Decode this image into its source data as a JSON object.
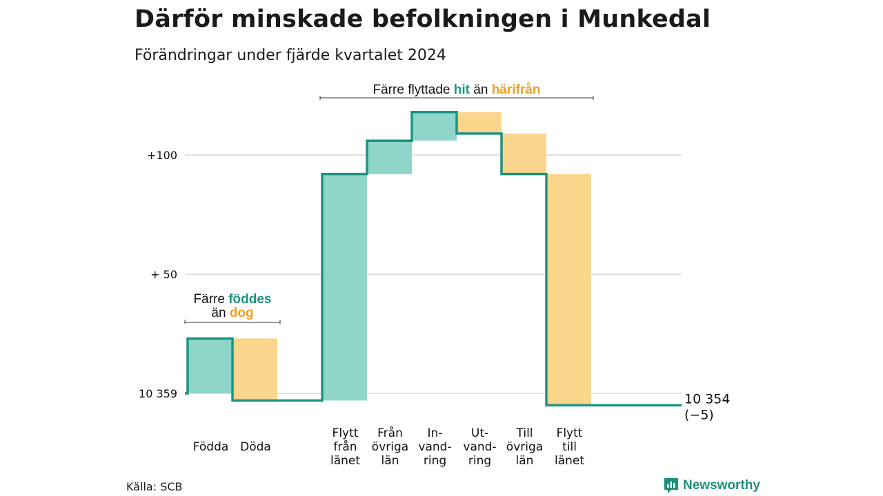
{
  "title": "Därför minskade befolkningen i Munkedal",
  "subtitle": "Förändringar under fjärde kvartalet 2024",
  "source": "Källa: SCB",
  "brand": {
    "name": "Newsworthy",
    "icon": "chart-bubble-icon",
    "color": "#1f8f7c"
  },
  "colors": {
    "increase": "#8fd5ca",
    "decrease": "#fad58c",
    "line": "#1a9582",
    "grid": "#d9d9d9"
  },
  "chart_data": {
    "type": "waterfall",
    "start": {
      "value": 10359,
      "label": "10 359"
    },
    "end": {
      "value": 10354,
      "label": "10 354",
      "change_label": "(−5)"
    },
    "y_ticks": [
      {
        "label": "10 359",
        "value": 0
      },
      {
        "label": "+ 50",
        "value": 50
      },
      {
        "label": "+100",
        "value": 100
      }
    ],
    "ylim": [
      -8,
      122
    ],
    "steps": [
      {
        "lines": [
          "",
          "Födda"
        ],
        "change": 23,
        "kind": "increase"
      },
      {
        "lines": [
          "",
          "Döda"
        ],
        "change": -26,
        "kind": "decrease"
      },
      {
        "lines": [
          "Flytt",
          "från",
          "länet"
        ],
        "change": 95,
        "kind": "increase"
      },
      {
        "lines": [
          "Från",
          "övriga",
          "län"
        ],
        "change": 14,
        "kind": "increase"
      },
      {
        "lines": [
          "In-",
          "vand-",
          "ring"
        ],
        "change": 12,
        "kind": "increase"
      },
      {
        "lines": [
          "Ut-",
          "vand-",
          "ring"
        ],
        "change": -9,
        "kind": "decrease"
      },
      {
        "lines": [
          "Till",
          "övriga",
          "län"
        ],
        "change": -17,
        "kind": "decrease"
      },
      {
        "lines": [
          "Flytt",
          "till",
          "länet"
        ],
        "change": -97,
        "kind": "decrease"
      }
    ],
    "annotations": [
      {
        "parts": [
          [
            "Färre ",
            "plain"
          ],
          [
            "föddes",
            "green"
          ]
        ],
        "parts2": [
          [
            "än ",
            "plain"
          ],
          [
            "dog",
            "orange"
          ]
        ],
        "span": [
          0,
          1
        ]
      },
      {
        "parts": [
          [
            "Färre flyttade ",
            "plain"
          ],
          [
            "hit",
            "green"
          ],
          [
            " än ",
            "plain"
          ],
          [
            "härifrån",
            "orange"
          ]
        ],
        "span": [
          2,
          7
        ]
      }
    ]
  }
}
